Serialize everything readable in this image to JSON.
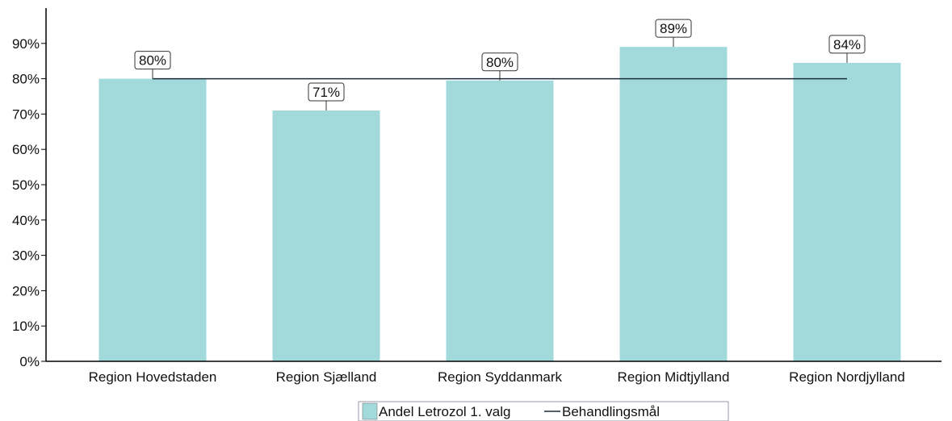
{
  "chart_data": {
    "type": "bar",
    "categories": [
      "Region Hovedstaden",
      "Region Sjælland",
      "Region Syddanmark",
      "Region Midtjylland",
      "Region Nordjylland"
    ],
    "series": [
      {
        "name": "Andel Letrozol 1. valg",
        "type": "bar",
        "values": [
          80,
          71,
          79.5,
          89,
          84.5
        ],
        "data_labels": [
          "80%",
          "71%",
          "80%",
          "89%",
          "84%"
        ],
        "color": "#a2dadc"
      },
      {
        "name": "Behandlingsmål",
        "type": "line",
        "values": [
          80,
          80,
          80,
          80,
          80
        ],
        "color": "#1b2a3a"
      }
    ],
    "ylim": [
      0,
      100
    ],
    "yticks": [
      0,
      10,
      20,
      30,
      40,
      50,
      60,
      70,
      80,
      90
    ],
    "ytick_labels": [
      "0%",
      "10%",
      "20%",
      "30%",
      "40%",
      "50%",
      "60%",
      "70%",
      "80%",
      "90%"
    ],
    "legend_position": "bottom",
    "grid": false
  }
}
